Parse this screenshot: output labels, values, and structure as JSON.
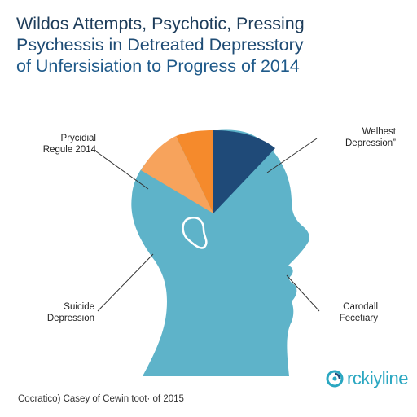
{
  "title": {
    "line1": "Wildos Attempts, Psychotic, Pressing",
    "line2": "Psychessis in Detreated Depresstory",
    "line3": "of Unfersisiation to Progress of 2014"
  },
  "labels": {
    "top_left": {
      "line1": "Prycidial",
      "line2": "Regule 2014"
    },
    "top_right": {
      "line1": "Welhest",
      "line2": "Depression”"
    },
    "bottom_left": {
      "line1": "Suicide",
      "line2": "Depression"
    },
    "bottom_right": {
      "line1": "Carodall",
      "line2": "Fecetiary"
    }
  },
  "segments": [
    {
      "name": "light-orange",
      "color": "#f7a35c"
    },
    {
      "name": "orange",
      "color": "#f58a2c"
    },
    {
      "name": "navy",
      "color": "#1f4a78"
    }
  ],
  "head_color": "#5eb3c9",
  "footer": {
    "caption": "Cocratico) Casey of Cewin toot· of 2015"
  },
  "brand": {
    "name": "rckiyline",
    "icon": "circular-arrows-icon",
    "color": "#2aa7c1"
  }
}
